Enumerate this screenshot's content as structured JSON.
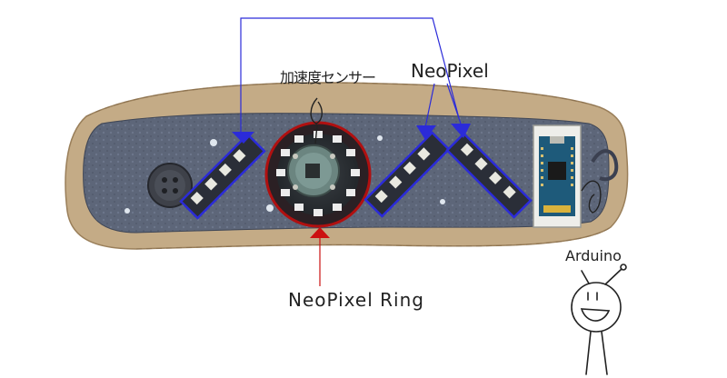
{
  "labels": {
    "accelerometer": "加速度センサー",
    "neopixel": "NeoPixel",
    "neopixel_ring": "NeoPixel Ring",
    "arduino": "Arduino"
  },
  "colors": {
    "wire": "#2b2bd9",
    "ring_outline": "#b01010",
    "fabric": "#5a6478",
    "ruffle": "#b89c78",
    "arrow_red": "#cc1010"
  }
}
